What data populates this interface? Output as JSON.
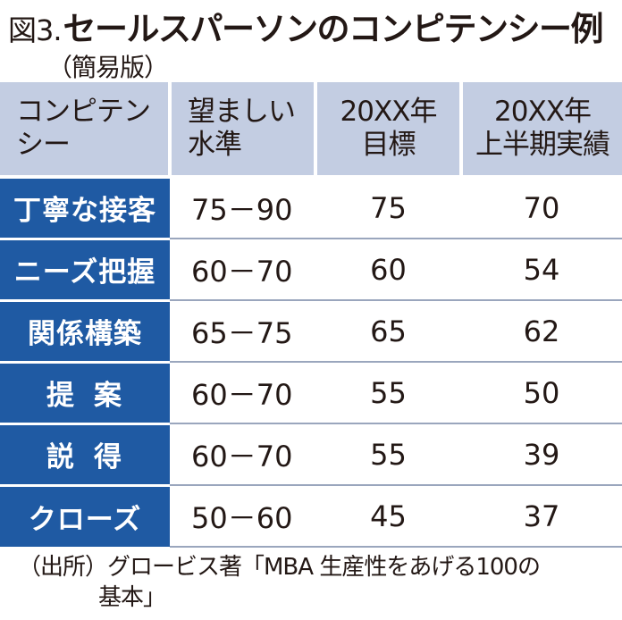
{
  "title": {
    "label": "図3.",
    "text": "セールスパーソンのコンピテンシー例",
    "subtitle": "（簡易版）"
  },
  "table": {
    "headers": [
      [
        "コンピテン",
        "シー"
      ],
      [
        "望ましい",
        "水準"
      ],
      [
        "20XX年",
        "目標"
      ],
      [
        "20XX年",
        "上半期実績"
      ]
    ],
    "rows": [
      {
        "name": "丁寧な接客",
        "range": "75－90",
        "target": "75",
        "actual": "70"
      },
      {
        "name": "ニーズ把握",
        "range": "60－70",
        "target": "60",
        "actual": "54"
      },
      {
        "name": "関係構築",
        "range": "65－75",
        "target": "65",
        "actual": "62"
      },
      {
        "name": "提案",
        "range": "60－70",
        "target": "55",
        "actual": "50"
      },
      {
        "name": "説得",
        "range": "60－70",
        "target": "55",
        "actual": "39"
      },
      {
        "name": "クローズ",
        "range": "50－60",
        "target": "45",
        "actual": "37"
      }
    ]
  },
  "source": {
    "line1": "（出所）グロービス著「MBA 生産性をあげる100の",
    "line2": "基本」"
  },
  "colors": {
    "header_bg": "#c3cde2",
    "row_label_bg": "#1f5aa3",
    "text": "#231815"
  }
}
